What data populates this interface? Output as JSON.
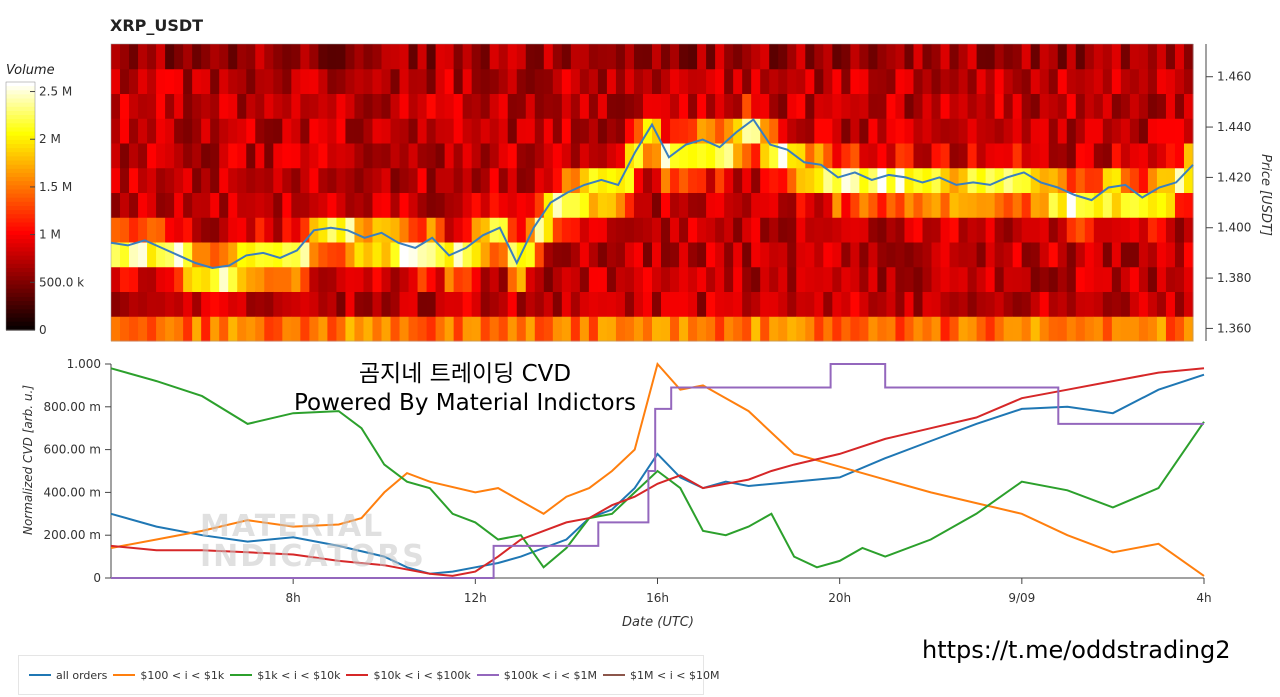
{
  "title": "XRP_USDT",
  "overlay": {
    "line1": "곰지네 트레이딩 CVD",
    "line2": "Powered By Material Indictors",
    "url": "https://t.me/oddstrading2",
    "watermark_line1": "MATERIAL",
    "watermark_line2": "INDICATORS"
  },
  "colors": {
    "all_orders": "#1f77b4",
    "s100_1k": "#ff7f0e",
    "s1k_10k": "#2ca02c",
    "s10k_100k": "#d62728",
    "s100k_1m": "#9467bd",
    "s1m_10m": "#8c564b",
    "price_line": "#3a7fbf"
  },
  "chart_data": [
    {
      "type": "heatmap",
      "title": "XRP_USDT",
      "ylabel": "Price [USDT]",
      "ylim": [
        1.355,
        1.473
      ],
      "yticks": [
        "1.360",
        "1.380",
        "1.400",
        "1.420",
        "1.440",
        "1.460"
      ],
      "colorbar": {
        "label": "Volume",
        "ticks": [
          "0",
          "500.0 k",
          "1 M",
          "1.5 M",
          "2 M",
          "2.5 M"
        ],
        "range": [
          0,
          2.6
        ]
      },
      "price_series": [
        1.394,
        1.393,
        1.395,
        1.392,
        1.389,
        1.386,
        1.384,
        1.385,
        1.389,
        1.39,
        1.388,
        1.391,
        1.399,
        1.4,
        1.399,
        1.396,
        1.398,
        1.394,
        1.392,
        1.396,
        1.389,
        1.392,
        1.397,
        1.4,
        1.386,
        1.4,
        1.41,
        1.414,
        1.417,
        1.419,
        1.417,
        1.43,
        1.441,
        1.428,
        1.433,
        1.435,
        1.432,
        1.438,
        1.443,
        1.433,
        1.431,
        1.426,
        1.425,
        1.42,
        1.422,
        1.419,
        1.421,
        1.42,
        1.418,
        1.42,
        1.417,
        1.418,
        1.417,
        1.42,
        1.422,
        1.418,
        1.416,
        1.413,
        1.411,
        1.416,
        1.417,
        1.412,
        1.416,
        1.418,
        1.425
      ]
    },
    {
      "type": "line",
      "xlabel": "Date (UTC)",
      "ylabel": "Normalized CVD [arb. u.]",
      "ylim": [
        0,
        1.0
      ],
      "yticks": [
        "0",
        "200.00 m",
        "400.00 m",
        "600.00 m",
        "800.00 m",
        "1.000"
      ],
      "xticks": [
        "8h",
        "12h",
        "16h",
        "20h",
        "9/09",
        "4h"
      ],
      "x_start_hours": 4,
      "x_end_hours": 28,
      "series": [
        {
          "name": "all orders",
          "color_key": "all_orders",
          "x": [
            4,
            5,
            6,
            7,
            8,
            9,
            10,
            10.5,
            11,
            11.5,
            12,
            12.5,
            13,
            13.5,
            14,
            14.5,
            15,
            15.5,
            16,
            16.5,
            17,
            17.5,
            18,
            19,
            20,
            21,
            22,
            23,
            24,
            25,
            26,
            27,
            28
          ],
          "y": [
            0.3,
            0.24,
            0.2,
            0.17,
            0.19,
            0.15,
            0.1,
            0.05,
            0.02,
            0.03,
            0.05,
            0.07,
            0.1,
            0.14,
            0.18,
            0.28,
            0.32,
            0.42,
            0.58,
            0.47,
            0.42,
            0.45,
            0.43,
            0.45,
            0.47,
            0.56,
            0.64,
            0.72,
            0.79,
            0.8,
            0.77,
            0.88,
            0.95
          ]
        },
        {
          "name": "$100 < i < $1k",
          "color_key": "s100_1k",
          "x": [
            4,
            5,
            6,
            7,
            8,
            9,
            9.5,
            10,
            10.5,
            11,
            12,
            12.5,
            13,
            13.5,
            14,
            14.5,
            15,
            15.5,
            16,
            16.5,
            17,
            18,
            19,
            20,
            21,
            22,
            23,
            24,
            25,
            26,
            27,
            28
          ],
          "y": [
            0.14,
            0.18,
            0.22,
            0.27,
            0.24,
            0.25,
            0.28,
            0.4,
            0.49,
            0.45,
            0.4,
            0.42,
            0.36,
            0.3,
            0.38,
            0.42,
            0.5,
            0.6,
            1.0,
            0.88,
            0.9,
            0.78,
            0.58,
            0.52,
            0.46,
            0.4,
            0.35,
            0.3,
            0.2,
            0.12,
            0.16,
            0.01
          ]
        },
        {
          "name": "$1k < i < $10k",
          "color_key": "s1k_10k",
          "x": [
            4,
            5,
            6,
            7,
            8,
            9,
            9.5,
            10,
            10.5,
            11,
            11.5,
            12,
            12.5,
            13,
            13.5,
            14,
            14.5,
            15,
            15.5,
            16,
            16.5,
            17,
            17.5,
            18,
            18.5,
            19,
            19.5,
            20,
            20.5,
            21,
            22,
            23,
            24,
            25,
            26,
            27,
            28
          ],
          "y": [
            0.98,
            0.92,
            0.85,
            0.72,
            0.77,
            0.78,
            0.7,
            0.53,
            0.45,
            0.42,
            0.3,
            0.26,
            0.18,
            0.2,
            0.05,
            0.14,
            0.28,
            0.3,
            0.4,
            0.5,
            0.42,
            0.22,
            0.2,
            0.24,
            0.3,
            0.1,
            0.05,
            0.08,
            0.14,
            0.1,
            0.18,
            0.3,
            0.45,
            0.41,
            0.33,
            0.42,
            0.73
          ]
        },
        {
          "name": "$10k < i < $100k",
          "color_key": "s10k_100k",
          "x": [
            4,
            5,
            6,
            7,
            8,
            9,
            10,
            11,
            11.5,
            12,
            12.5,
            13,
            13.5,
            14,
            14.5,
            15,
            15.5,
            16,
            16.5,
            17,
            17.5,
            18,
            18.5,
            19,
            20,
            21,
            22,
            23,
            24,
            25,
            26,
            27,
            28
          ],
          "y": [
            0.15,
            0.13,
            0.13,
            0.12,
            0.11,
            0.08,
            0.06,
            0.02,
            0.01,
            0.03,
            0.1,
            0.18,
            0.22,
            0.26,
            0.28,
            0.34,
            0.38,
            0.44,
            0.48,
            0.42,
            0.44,
            0.46,
            0.5,
            0.53,
            0.58,
            0.65,
            0.7,
            0.75,
            0.84,
            0.88,
            0.92,
            0.96,
            0.98
          ]
        },
        {
          "name": "$100k < i < $1M",
          "color_key": "s100k_1m",
          "x": [
            4,
            12.4,
            12.4,
            14.7,
            14.7,
            15.8,
            15.8,
            15.95,
            15.95,
            16.3,
            16.3,
            19.8,
            19.8,
            21.0,
            21.0,
            24.8,
            24.8,
            28
          ],
          "y": [
            0,
            0,
            0.15,
            0.15,
            0.26,
            0.26,
            0.5,
            0.5,
            0.79,
            0.79,
            0.89,
            0.89,
            1.0,
            1.0,
            0.89,
            0.89,
            0.72,
            0.72
          ]
        },
        {
          "name": "$1M < i < $10M",
          "color_key": "s1m_10m",
          "x": [],
          "y": []
        }
      ]
    }
  ]
}
